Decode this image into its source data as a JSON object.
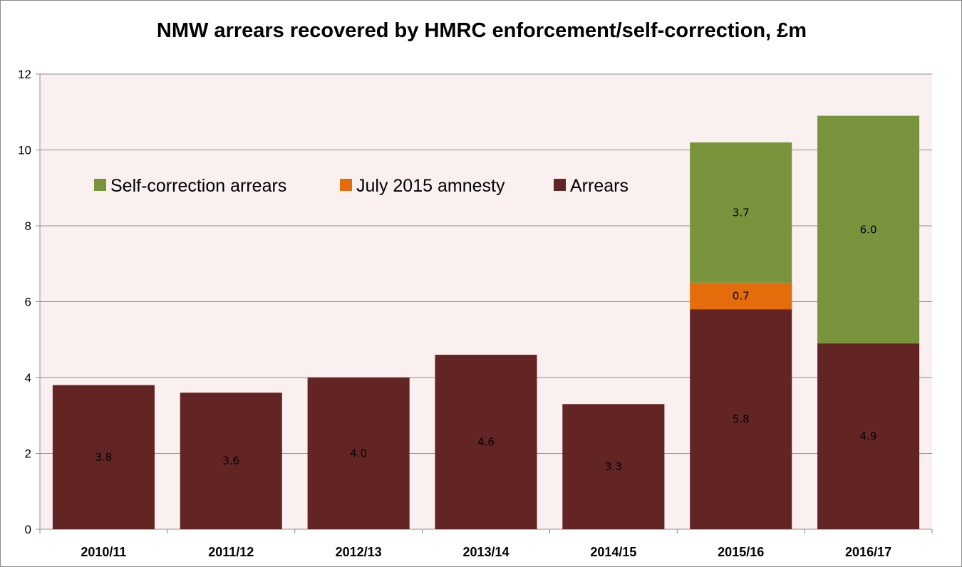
{
  "chart_data": {
    "type": "bar",
    "stacked": true,
    "title": "NMW arrears recovered by HMRC enforcement/self-correction, £m",
    "xlabel": "",
    "ylabel": "",
    "ylim": [
      0,
      12
    ],
    "yticks": [
      0,
      2,
      4,
      6,
      8,
      10,
      12
    ],
    "categories": [
      "2010/11",
      "2011/12",
      "2012/13",
      "2013/14",
      "2014/15",
      "2015/16",
      "2016/17"
    ],
    "series": [
      {
        "name": "Arrears",
        "color": "#632523",
        "values": [
          3.8,
          3.6,
          4.0,
          4.6,
          3.3,
          5.8,
          4.9
        ],
        "labels": [
          "3.8",
          "3.6",
          "4.0",
          "4.6",
          "3.3",
          "5.8",
          "4.9"
        ]
      },
      {
        "name": "July 2015 amnesty",
        "color": "#E46C0A",
        "values": [
          0,
          0,
          0,
          0,
          0,
          0.7,
          0
        ],
        "labels": [
          "",
          "",
          "",
          "",
          "",
          "0.7",
          ""
        ]
      },
      {
        "name": "Self-correction arrears",
        "color": "#77933C",
        "values": [
          0,
          0,
          0,
          0,
          0,
          3.7,
          6.0
        ],
        "labels": [
          "",
          "",
          "",
          "",
          "",
          "3.7",
          "6.0"
        ]
      }
    ],
    "legend": {
      "position": "upper-left inside plot",
      "order": [
        "Self-correction arrears",
        "July 2015 amnesty",
        "Arrears"
      ]
    },
    "plot_background": "#FBF0F0",
    "grid": true
  }
}
